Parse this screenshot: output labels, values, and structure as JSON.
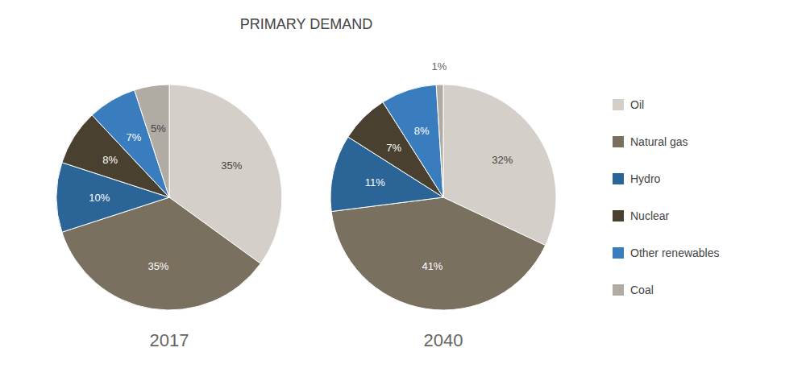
{
  "chart_data": {
    "type": "pie",
    "title": "PRIMARY DEMAND",
    "categories": [
      "Oil",
      "Natural gas",
      "Hydro",
      "Nuclear",
      "Other renewables",
      "Coal"
    ],
    "colors": [
      "#d4cfc8",
      "#7a7060",
      "#2b6496",
      "#4a4030",
      "#3a7dbf",
      "#b0aba3"
    ],
    "data_labels": true,
    "series": [
      {
        "name": "2017",
        "values": [
          35,
          35,
          10,
          8,
          7,
          5
        ],
        "value_labels": [
          "35%",
          "35%",
          "10%",
          "8%",
          "7%",
          "5%"
        ]
      },
      {
        "name": "2040",
        "values": [
          32,
          41,
          11,
          7,
          8,
          1
        ],
        "value_labels": [
          "32%",
          "41%",
          "11%",
          "7%",
          "8%",
          "1%"
        ]
      }
    ]
  }
}
